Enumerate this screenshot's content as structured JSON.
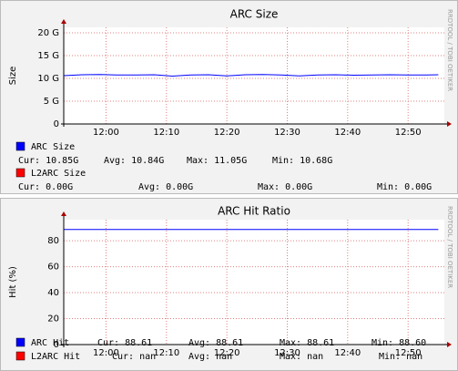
{
  "chart_data": [
    {
      "type": "line",
      "title": "ARC Size",
      "y_label": "Size",
      "watermark": "RRDTOOL / TOBI OETIKER",
      "x": [
        "11:53",
        "11:56",
        "11:59",
        "12:02",
        "12:05",
        "12:08",
        "12:11",
        "12:14",
        "12:17",
        "12:20",
        "12:23",
        "12:26",
        "12:29",
        "12:32",
        "12:35",
        "12:38",
        "12:41",
        "12:44",
        "12:47",
        "12:50",
        "12:53",
        "12:55"
      ],
      "xlim": [
        "11:53",
        "12:56"
      ],
      "xticks": [
        "12:00",
        "12:10",
        "12:20",
        "12:30",
        "12:40",
        "12:50"
      ],
      "ylim": [
        0,
        20
      ],
      "yticks": [
        0,
        {
          "value": 5,
          "label": "5 G"
        },
        {
          "value": 10,
          "label": "10 G"
        },
        {
          "value": 15,
          "label": "15 G"
        },
        {
          "value": 20,
          "label": "20 G"
        }
      ],
      "grid": true,
      "series": [
        {
          "name": "ARC Size",
          "color": "#0000ff",
          "values": [
            10.6,
            10.8,
            10.85,
            10.75,
            10.75,
            10.8,
            10.5,
            10.75,
            10.8,
            10.55,
            10.8,
            10.85,
            10.75,
            10.55,
            10.75,
            10.8,
            10.7,
            10.75,
            10.8,
            10.75,
            10.75,
            10.8
          ],
          "legend_stats": [
            "Cur: 10.85G",
            "Avg: 10.84G",
            "Max: 11.05G",
            "Min: 10.68G"
          ]
        },
        {
          "name": "L2ARC Size",
          "color": "#ff0000",
          "values": [
            0,
            0,
            0,
            0,
            0,
            0,
            0,
            0,
            0,
            0,
            0,
            0,
            0,
            0,
            0,
            0,
            0,
            0,
            0,
            0,
            0,
            0
          ],
          "legend_stats": [
            "Cur: 0.00G",
            "Avg: 0.00G",
            "Max: 0.00G",
            "Min: 0.00G"
          ]
        }
      ]
    },
    {
      "type": "line",
      "title": "ARC Hit Ratio",
      "y_label": "Hit (%)",
      "watermark": "RRDTOOL / TOBI OETIKER",
      "x": [
        "11:53",
        "11:56",
        "11:59",
        "12:02",
        "12:05",
        "12:08",
        "12:11",
        "12:14",
        "12:17",
        "12:20",
        "12:23",
        "12:26",
        "12:29",
        "12:32",
        "12:35",
        "12:38",
        "12:41",
        "12:44",
        "12:47",
        "12:50",
        "12:53",
        "12:55"
      ],
      "xlim": [
        "11:53",
        "12:56"
      ],
      "xticks": [
        "12:00",
        "12:10",
        "12:20",
        "12:30",
        "12:40",
        "12:50"
      ],
      "ylim": [
        0,
        92
      ],
      "yticks": [
        0,
        20,
        40,
        60,
        80
      ],
      "grid": true,
      "series": [
        {
          "name": "ARC Hit",
          "color": "#0000ff",
          "values": [
            88.6,
            88.6,
            88.6,
            88.6,
            88.6,
            88.6,
            88.6,
            88.6,
            88.6,
            88.6,
            88.6,
            88.6,
            88.6,
            88.6,
            88.6,
            88.6,
            88.6,
            88.6,
            88.6,
            88.6,
            88.6,
            88.6
          ],
          "legend_stats": [
            "Cur: 88.61",
            "Avg: 88.61",
            "Max: 88.61",
            "Min: 88.60"
          ]
        },
        {
          "name": "L2ARC Hit",
          "color": "#ff0000",
          "values": [
            null,
            null,
            null,
            null,
            null,
            null,
            null,
            null,
            null,
            null,
            null,
            null,
            null,
            null,
            null,
            null,
            null,
            null,
            null,
            null,
            null,
            null
          ],
          "legend_stats": [
            "Cur:  nan",
            "Avg:  nan",
            "Max:  nan",
            "Min:  nan"
          ]
        }
      ]
    }
  ]
}
